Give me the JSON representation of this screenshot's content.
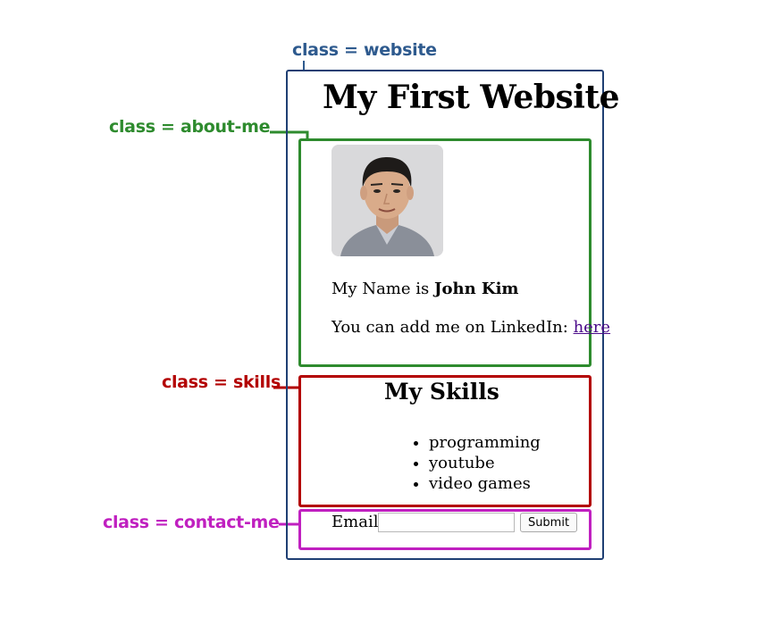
{
  "annotations": {
    "website": "class = website",
    "about_me": "class = about-me",
    "skills": "class = skills",
    "contact_me": "class = contact-me",
    "colors": {
      "website": "#2e5a8e",
      "about_me": "#2e8b2e",
      "skills": "#b30000",
      "contact_me": "#c020c0"
    }
  },
  "website": {
    "title": "My First Website"
  },
  "about_me": {
    "photo_icon": "person-photo",
    "name_prefix": "My Name is ",
    "name": "John Kim",
    "linkedin_prefix": "You can add me on LinkedIn: ",
    "linkedin_link": "here"
  },
  "skills": {
    "title": "My Skills",
    "items": [
      "programming",
      "youtube",
      "video games"
    ]
  },
  "contact_me": {
    "email_label": "Email",
    "email_value": "",
    "email_placeholder": "",
    "submit_label": "Submit"
  }
}
